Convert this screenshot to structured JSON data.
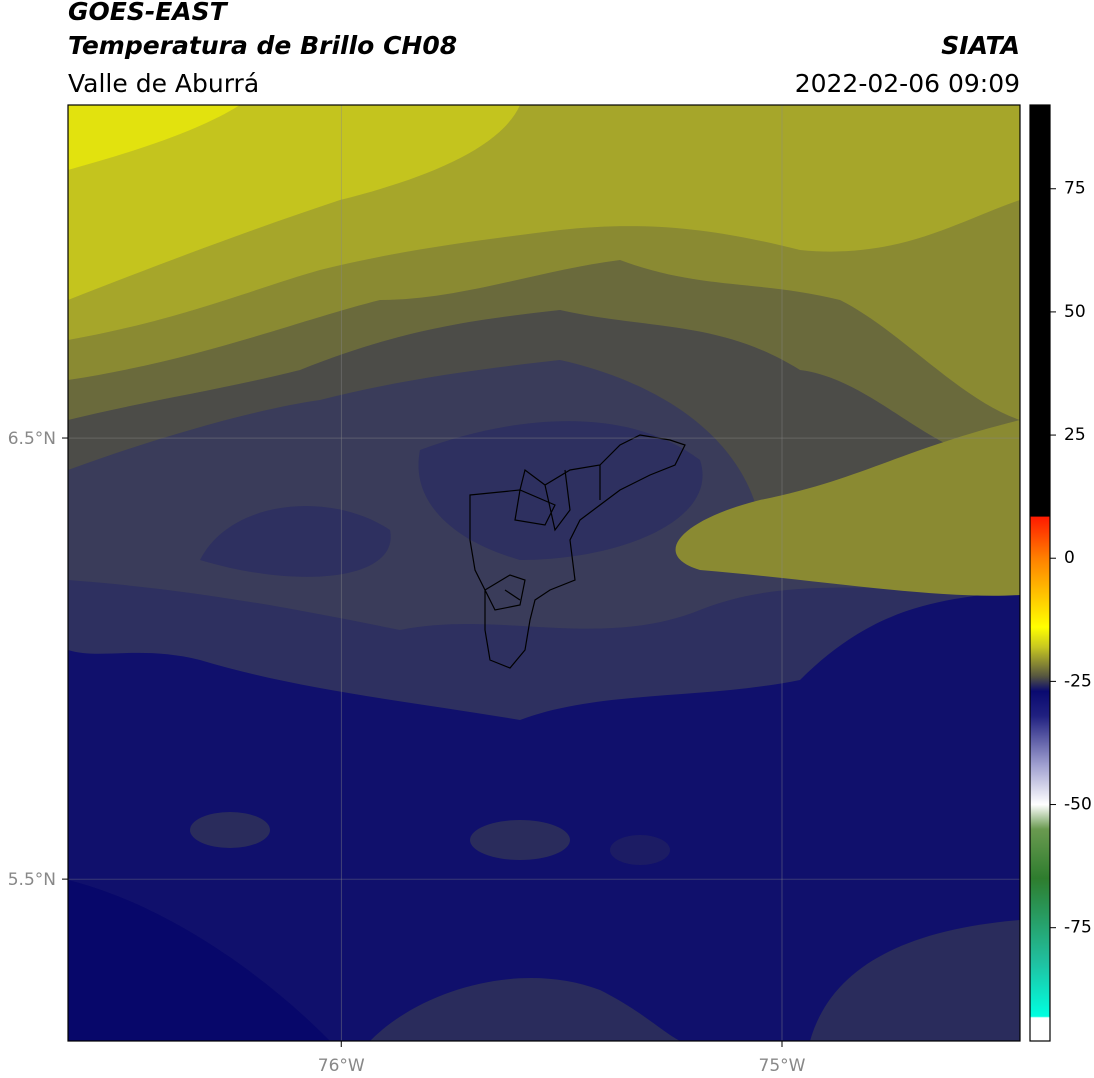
{
  "header": {
    "title": "GOES-EAST",
    "subtitle": "Temperatura de Brillo CH08",
    "region": "Valle de Aburrá",
    "source": "SIATA",
    "datetime": "2022-02-06 09:09"
  },
  "map": {
    "lon_lim": [
      -76.62,
      -74.46
    ],
    "lat_lim": [
      5.133,
      7.255
    ],
    "lon_ticks": [
      {
        "value": -76,
        "label": "76°W"
      },
      {
        "value": -75,
        "label": "75°W"
      }
    ],
    "lat_ticks": [
      {
        "value": 6.5,
        "label": "6.5°N"
      },
      {
        "value": 5.5,
        "label": "5.5°N"
      }
    ],
    "grid": true
  },
  "colorbar": {
    "lim": [
      -98,
      92
    ],
    "ticks": [
      75,
      50,
      25,
      0,
      -25,
      -50,
      -75
    ],
    "stops": [
      {
        "value": 92,
        "color": "#000000"
      },
      {
        "value": 8.5,
        "color": "#000000"
      },
      {
        "value": 8.4,
        "color": "#ff1a00"
      },
      {
        "value": 0,
        "color": "#ff8000"
      },
      {
        "value": -14,
        "color": "#ffff00"
      },
      {
        "value": -18,
        "color": "#c8c820"
      },
      {
        "value": -24,
        "color": "#555540"
      },
      {
        "value": -27,
        "color": "#0a0a70"
      },
      {
        "value": -32,
        "color": "#202080"
      },
      {
        "value": -42,
        "color": "#a0a0d0"
      },
      {
        "value": -50,
        "color": "#ffffff"
      },
      {
        "value": -55,
        "color": "#6a9a50"
      },
      {
        "value": -65,
        "color": "#2e7d2e"
      },
      {
        "value": -82,
        "color": "#20c0a0"
      },
      {
        "value": -93,
        "color": "#00ffe0"
      },
      {
        "value": -93.3,
        "color": "#ffffff"
      },
      {
        "value": -98,
        "color": "#ffffff"
      }
    ]
  }
}
